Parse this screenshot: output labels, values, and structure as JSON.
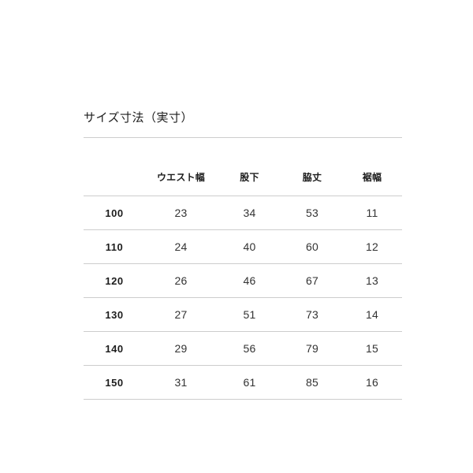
{
  "section": {
    "title": "サイズ寸法（実寸）"
  },
  "table": {
    "corner_label": "",
    "columns": [
      "ウエスト幅",
      "股下",
      "脇丈",
      "裾幅"
    ],
    "rows": [
      {
        "size": "100",
        "values": [
          "23",
          "34",
          "53",
          "11"
        ]
      },
      {
        "size": "110",
        "values": [
          "24",
          "40",
          "60",
          "12"
        ]
      },
      {
        "size": "120",
        "values": [
          "26",
          "46",
          "67",
          "13"
        ]
      },
      {
        "size": "130",
        "values": [
          "27",
          "51",
          "73",
          "14"
        ]
      },
      {
        "size": "140",
        "values": [
          "29",
          "56",
          "79",
          "15"
        ]
      },
      {
        "size": "150",
        "values": [
          "31",
          "61",
          "85",
          "16"
        ]
      }
    ]
  },
  "colors": {
    "background": "#ffffff",
    "heading_text": "#1d1d1d",
    "body_text": "#333333",
    "divider": "#cdcdcd"
  }
}
